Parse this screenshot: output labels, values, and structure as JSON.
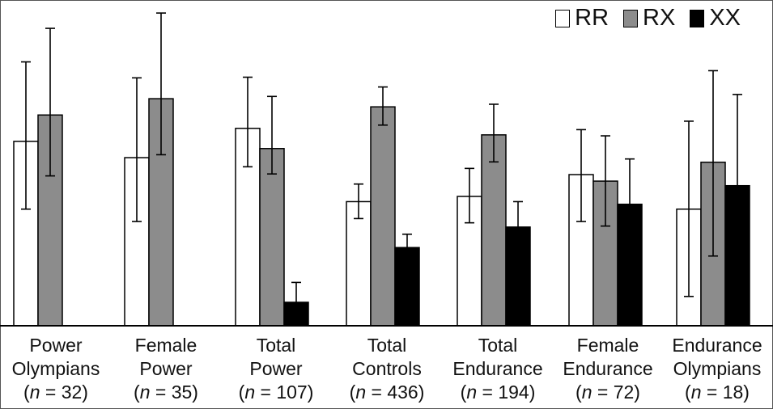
{
  "chart_data": {
    "type": "bar",
    "title": "",
    "xlabel": "",
    "ylabel": "",
    "ylim": [
      0,
      100
    ],
    "legend_position": "top-right",
    "grid": false,
    "categories": [
      {
        "line1": "Power",
        "line2": "Olympians",
        "n_prefix": "(",
        "n_symbol": "n",
        "n_value": " = 32)"
      },
      {
        "line1": "Female",
        "line2": "Power",
        "n_prefix": "(",
        "n_symbol": "n",
        "n_value": " = 35)"
      },
      {
        "line1": "Total",
        "line2": "Power",
        "n_prefix": "(",
        "n_symbol": "n",
        "n_value": " = 107)"
      },
      {
        "line1": "Total",
        "line2": "Controls",
        "n_prefix": "(",
        "n_symbol": "n",
        "n_value": " = 436)"
      },
      {
        "line1": "Total",
        "line2": "Endurance",
        "n_prefix": "(",
        "n_symbol": "n",
        "n_value": " = 194)"
      },
      {
        "line1": "Female",
        "line2": "Endurance",
        "n_prefix": "(",
        "n_symbol": "n",
        "n_value": " = 72)"
      },
      {
        "line1": "Endurance",
        "line2": "Olympians",
        "n_prefix": "(",
        "n_symbol": "n",
        "n_value": " = 18)"
      }
    ],
    "series": [
      {
        "name": "RR",
        "color": "#ffffff",
        "values": [
          56.6,
          51.6,
          60.6,
          38.1,
          39.7,
          46.4,
          35.8
        ],
        "error_low": [
          35.8,
          32.0,
          48.8,
          32.9,
          31.6,
          32.0,
          9.0
        ],
        "error_high": [
          81.0,
          76.1,
          76.3,
          43.5,
          48.3,
          60.2,
          62.8
        ]
      },
      {
        "name": "RX",
        "color": "#8c8c8c",
        "values": [
          64.7,
          69.7,
          54.4,
          67.2,
          58.6,
          44.4,
          50.2
        ],
        "error_low": [
          46.0,
          52.5,
          46.6,
          61.6,
          50.3,
          30.6,
          21.4
        ],
        "error_high": [
          91.3,
          96.0,
          70.4,
          73.3,
          68.0,
          58.3,
          78.3
        ]
      },
      {
        "name": "XX",
        "color": "#000000",
        "values": [
          null,
          null,
          7.2,
          24.0,
          30.3,
          37.3,
          43.0
        ],
        "error_low": [
          null,
          null,
          null,
          null,
          null,
          null,
          null
        ],
        "error_high": [
          null,
          null,
          13.3,
          28.1,
          38.1,
          51.2,
          71.0
        ]
      }
    ]
  }
}
